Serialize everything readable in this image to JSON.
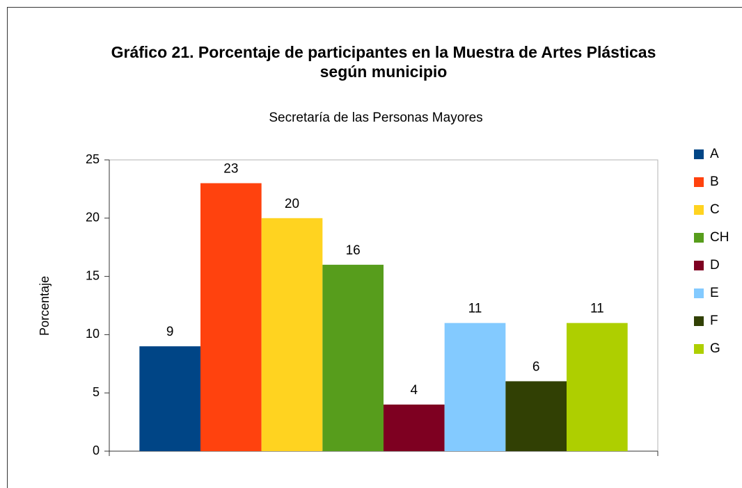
{
  "chart_data": {
    "type": "bar",
    "title": [
      "Gráfico 21. Porcentaje de participantes en la Muestra de Artes Plásticas",
      "según municipio"
    ],
    "subtitle": "Secretaría de las Personas Mayores",
    "y_label": "Porcentaje",
    "series": [
      {
        "name": "A",
        "color": "#004586",
        "values": [
          9
        ]
      },
      {
        "name": "B",
        "color": "#ff420e",
        "values": [
          23
        ]
      },
      {
        "name": "C",
        "color": "#ffd320",
        "values": [
          20
        ]
      },
      {
        "name": "CH",
        "color": "#579d1c",
        "values": [
          16
        ]
      },
      {
        "name": "D",
        "color": "#7e0021",
        "values": [
          4
        ]
      },
      {
        "name": "E",
        "color": "#83caff",
        "values": [
          11
        ]
      },
      {
        "name": "F",
        "color": "#314004",
        "values": [
          6
        ]
      },
      {
        "name": "G",
        "color": "#aecf00",
        "values": [
          11
        ]
      }
    ],
    "ylim": [
      0,
      25
    ],
    "yticks": [
      0,
      5,
      10,
      15,
      20,
      25
    ],
    "grid": false,
    "legend": "right"
  }
}
